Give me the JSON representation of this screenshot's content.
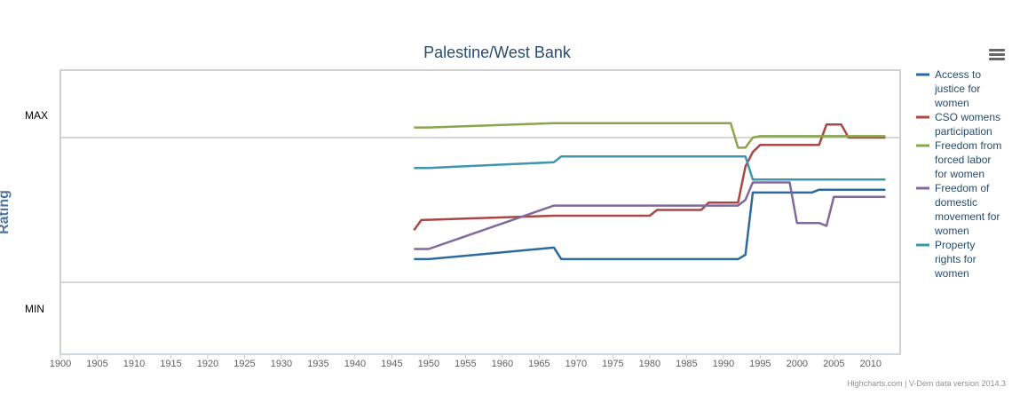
{
  "chart_data": {
    "type": "line",
    "title": "Palestine/West Bank",
    "xlabel": "",
    "ylabel": "Rating",
    "xlim": [
      1900,
      2014
    ],
    "x_ticks": [
      1900,
      1905,
      1910,
      1915,
      1920,
      1925,
      1930,
      1935,
      1940,
      1945,
      1950,
      1955,
      1960,
      1965,
      1970,
      1975,
      1980,
      1985,
      1990,
      1995,
      2000,
      2005,
      2010
    ],
    "y_categories": [
      "MAX",
      "MIN"
    ],
    "ylim_note": "unitless rating between MIN and MAX",
    "grid": "horizontal lines at MAX and MIN",
    "legend_position": "right",
    "credits": "Highcharts.com | V-Dem data version 2014.3",
    "series": [
      {
        "name": "Access to justice for women",
        "color": "#2f6a9e",
        "points": [
          [
            1948,
            0.16
          ],
          [
            1950,
            0.16
          ],
          [
            1967,
            0.24
          ],
          [
            1968,
            0.16
          ],
          [
            1992,
            0.16
          ],
          [
            1993,
            0.19
          ],
          [
            1994,
            0.62
          ],
          [
            2002,
            0.62
          ],
          [
            2003,
            0.64
          ],
          [
            2012,
            0.64
          ]
        ]
      },
      {
        "name": "CSO womens participation",
        "color": "#aa4643",
        "points": [
          [
            1948,
            0.36
          ],
          [
            1949,
            0.43
          ],
          [
            1967,
            0.46
          ],
          [
            1980,
            0.46
          ],
          [
            1981,
            0.5
          ],
          [
            1987,
            0.5
          ],
          [
            1988,
            0.55
          ],
          [
            1992,
            0.55
          ],
          [
            1993,
            0.8
          ],
          [
            1994,
            0.9
          ],
          [
            1995,
            0.95
          ],
          [
            2003,
            0.95
          ],
          [
            2004,
            1.09
          ],
          [
            2006,
            1.09
          ],
          [
            2007,
            1.0
          ],
          [
            2012,
            1.0
          ]
        ]
      },
      {
        "name": "Freedom from forced labor for women",
        "color": "#89a54e",
        "points": [
          [
            1948,
            1.07
          ],
          [
            1950,
            1.07
          ],
          [
            1967,
            1.1
          ],
          [
            1991,
            1.1
          ],
          [
            1992,
            0.93
          ],
          [
            1993,
            0.93
          ],
          [
            1994,
            1.0
          ],
          [
            1995,
            1.01
          ],
          [
            2012,
            1.01
          ]
        ]
      },
      {
        "name": "Freedom of domestic movement for women",
        "color": "#80699b",
        "points": [
          [
            1948,
            0.23
          ],
          [
            1950,
            0.23
          ],
          [
            1967,
            0.53
          ],
          [
            1992,
            0.53
          ],
          [
            1993,
            0.57
          ],
          [
            1994,
            0.69
          ],
          [
            1999,
            0.69
          ],
          [
            2000,
            0.41
          ],
          [
            2003,
            0.41
          ],
          [
            2004,
            0.39
          ],
          [
            2005,
            0.59
          ],
          [
            2012,
            0.59
          ]
        ]
      },
      {
        "name": "Property rights for women",
        "color": "#3d96ae",
        "points": [
          [
            1948,
            0.79
          ],
          [
            1950,
            0.79
          ],
          [
            1967,
            0.83
          ],
          [
            1968,
            0.87
          ],
          [
            1993,
            0.87
          ],
          [
            1994,
            0.71
          ],
          [
            2012,
            0.71
          ]
        ]
      }
    ]
  }
}
